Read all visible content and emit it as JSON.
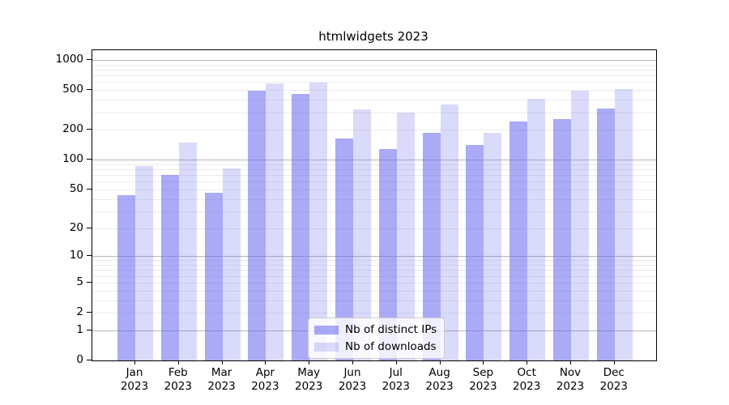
{
  "chart_data": {
    "type": "bar",
    "title": "htmlwidgets 2023",
    "categories": [
      "Jan 2023",
      "Feb 2023",
      "Mar 2023",
      "Apr 2023",
      "May 2023",
      "Jun 2023",
      "Jul 2023",
      "Aug 2023",
      "Sep 2023",
      "Oct 2023",
      "Nov 2023",
      "Dec 2023"
    ],
    "series": [
      {
        "name": "Nb of distinct IPs",
        "color": "rgba(109,109,240,0.58)",
        "values": [
          44,
          70,
          46,
          490,
          457,
          165,
          128,
          188,
          140,
          243,
          255,
          325
        ]
      },
      {
        "name": "Nb of downloads",
        "color": "rgba(109,109,240,0.25)",
        "values": [
          87,
          148,
          82,
          580,
          595,
          320,
          295,
          358,
          187,
          408,
          492,
          515
        ]
      }
    ],
    "xlabel": "",
    "ylabel": "",
    "yscale": "log1p",
    "ylim": [
      0,
      1250
    ],
    "ytick_values": [
      0,
      1,
      2,
      5,
      10,
      20,
      50,
      100,
      200,
      500,
      1000
    ],
    "ytick_labels": [
      "0",
      "1",
      "2",
      "5",
      "10",
      "20",
      "50",
      "100",
      "200",
      "500",
      "1000"
    ],
    "grid": {
      "major_at": [
        1,
        10,
        100,
        1000
      ],
      "minor": "log-decade-subdivisions",
      "major_color": "#b6b6b6",
      "minor_color": "#ebebeb"
    },
    "legend": {
      "position": "lower-center-inside",
      "entries": [
        "Nb of distinct IPs",
        "Nb of downloads"
      ]
    }
  },
  "colors": {
    "background": "#ffffff",
    "spine": "#000000",
    "text": "#000000"
  }
}
